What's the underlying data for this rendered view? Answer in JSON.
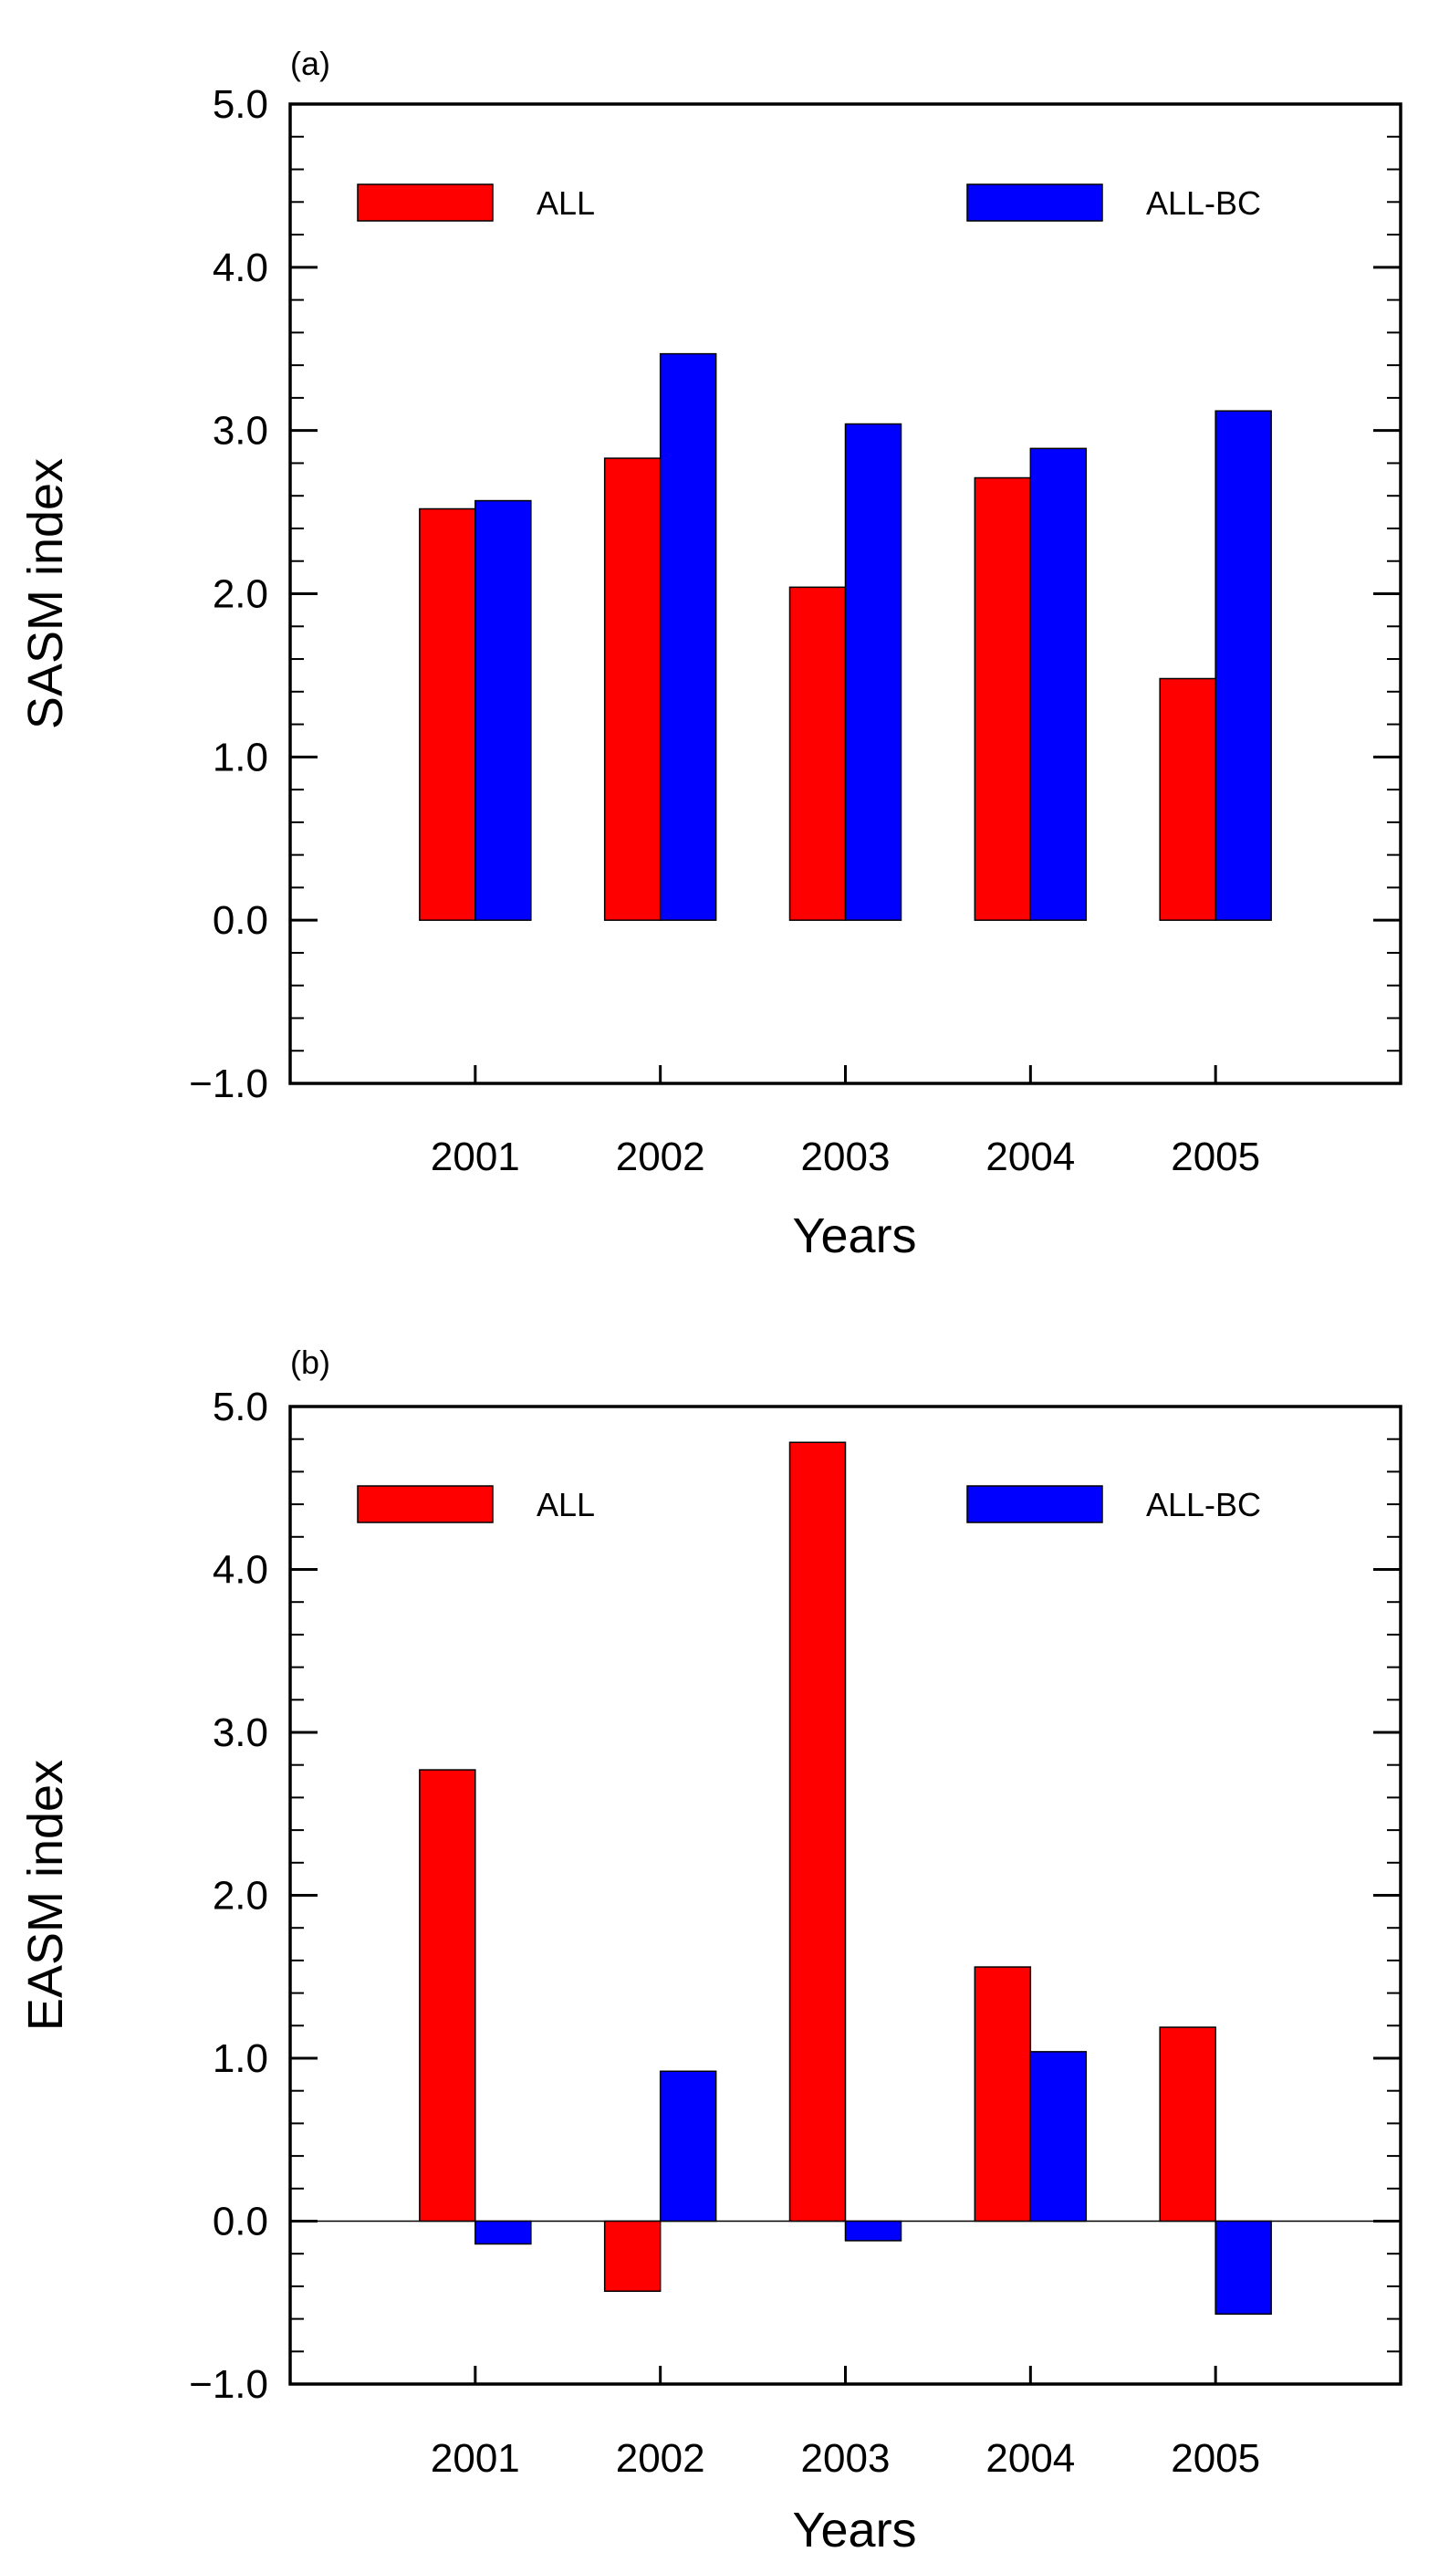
{
  "chart_data": [
    {
      "type": "bar",
      "panel_label": "(a)",
      "title": "",
      "xlabel": "Years",
      "ylabel": "SASM index",
      "categories": [
        "2001",
        "2002",
        "2003",
        "2004",
        "2005"
      ],
      "ylim": [
        -1.0,
        5.0
      ],
      "yticks": [
        -1.0,
        0.0,
        1.0,
        2.0,
        3.0,
        4.0,
        5.0
      ],
      "ytick_labels": [
        "−1.0",
        "0.0",
        "1.0",
        "2.0",
        "3.0",
        "4.0",
        "5.0"
      ],
      "zero_line": false,
      "legend_position": "top",
      "series": [
        {
          "name": "ALL",
          "color": "#ff0000",
          "values": [
            2.52,
            2.83,
            2.04,
            2.71,
            1.48
          ]
        },
        {
          "name": "ALL-BC",
          "color": "#0000ff",
          "values": [
            2.57,
            3.47,
            3.04,
            2.89,
            3.12
          ]
        }
      ]
    },
    {
      "type": "bar",
      "panel_label": "(b)",
      "title": "",
      "xlabel": "Years",
      "ylabel": "EASM index",
      "categories": [
        "2001",
        "2002",
        "2003",
        "2004",
        "2005"
      ],
      "ylim": [
        -1.0,
        5.0
      ],
      "yticks": [
        -1.0,
        0.0,
        1.0,
        2.0,
        3.0,
        4.0,
        5.0
      ],
      "ytick_labels": [
        "−1.0",
        "0.0",
        "1.0",
        "2.0",
        "3.0",
        "4.0",
        "5.0"
      ],
      "zero_line": true,
      "legend_position": "top",
      "series": [
        {
          "name": "ALL",
          "color": "#ff0000",
          "values": [
            2.77,
            -0.43,
            4.78,
            1.56,
            1.19
          ]
        },
        {
          "name": "ALL-BC",
          "color": "#0000ff",
          "values": [
            -0.14,
            0.92,
            -0.12,
            1.04,
            -0.57
          ]
        }
      ]
    }
  ]
}
